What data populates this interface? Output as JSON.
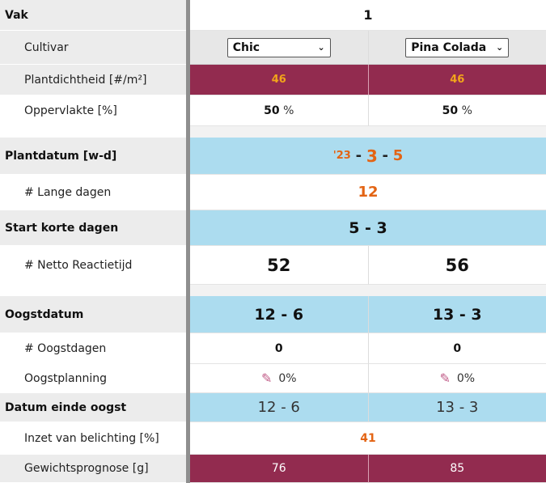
{
  "labels": {
    "vak": "Vak",
    "cultivar": "Cultivar",
    "plantdichtheid": "Plantdichtheid [#/m²]",
    "oppervlakte": "Oppervlakte [%]",
    "plantdatum": "Plantdatum [w-d]",
    "lange_dagen": "# Lange dagen",
    "start_korte_dagen": "Start korte dagen",
    "netto_reactietijd": "# Netto Reactietijd",
    "oogstdatum": "Oogstdatum",
    "oogstdagen": "# Oogstdagen",
    "oogstplanning": "Oogstplanning",
    "datum_einde_oogst": "Datum einde oogst",
    "inzet_belichting": "Inzet van belichting [%]",
    "gewichtsprognose": "Gewichtsprognose [g]"
  },
  "vak_value": "1",
  "columns": [
    {
      "cultivar": "Chic",
      "plantdichtheid": "46",
      "oppervlakte_value": "50",
      "oppervlakte_unit": "%",
      "netto_reactietijd": "52",
      "oogstdatum": "12 - 6",
      "oogstdagen": "0",
      "oogstplanning": "0%",
      "datum_einde_oogst": "12 - 6",
      "gewichtsprognose": "76"
    },
    {
      "cultivar": "Pina Colada",
      "plantdichtheid": "46",
      "oppervlakte_value": "50",
      "oppervlakte_unit": "%",
      "netto_reactietijd": "56",
      "oogstdatum": "13 - 3",
      "oogstdagen": "0",
      "oogstplanning": "0%",
      "datum_einde_oogst": "13 - 3",
      "gewichtsprognose": "85"
    }
  ],
  "plantdatum": {
    "year": "'23",
    "dash1": "-",
    "week": "3",
    "dash2": "-",
    "day": "5"
  },
  "lange_dagen": "12",
  "start_korte_dagen": "5 - 3",
  "inzet_belichting": "41",
  "chevron": "⌄",
  "edit_glyph": "✎",
  "colors": {
    "wine": "#922b4f",
    "blue": "#acdcef",
    "orange": "#e36414",
    "yellow_orange": "#f2a51a",
    "label_bg": "#ececec",
    "divider": "#8f8f8f"
  },
  "icons": [
    "chevron-down-icon",
    "edit-icon"
  ]
}
